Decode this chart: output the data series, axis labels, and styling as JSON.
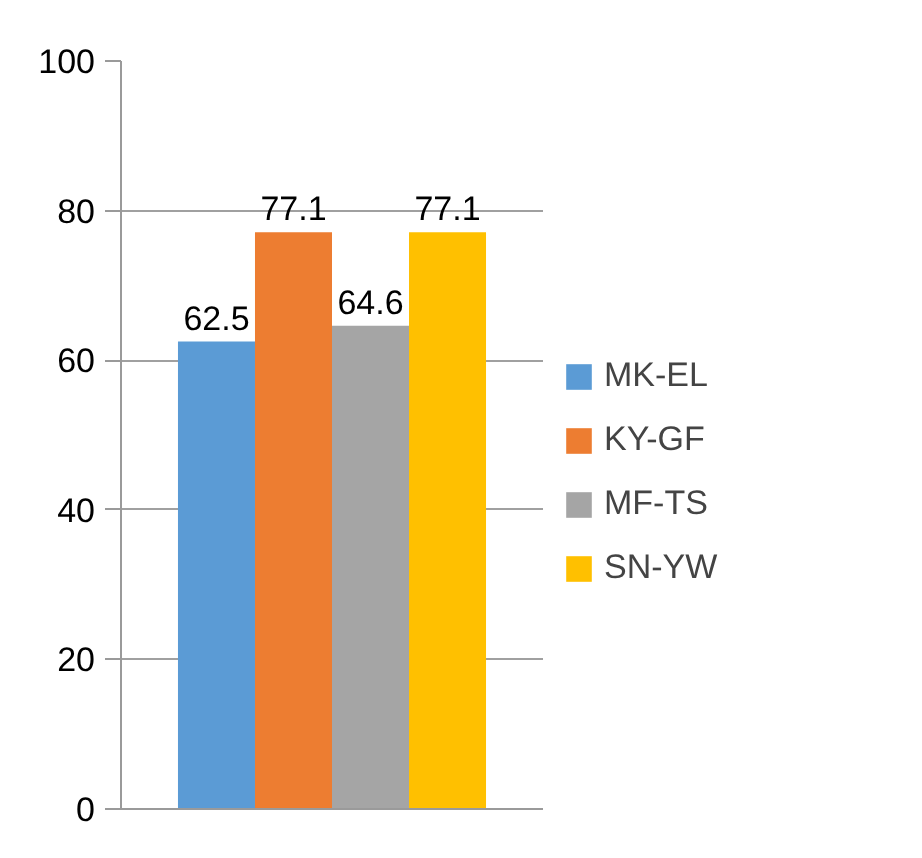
{
  "chart_data": {
    "type": "bar",
    "categories": [
      null
    ],
    "series": [
      {
        "name": "MK-EL",
        "color": "#5b9bd5",
        "values": [
          62.5
        ]
      },
      {
        "name": "KY-GF",
        "color": "#ed7d31",
        "values": [
          77.1
        ]
      },
      {
        "name": "MF-TS",
        "color": "#a5a5a5",
        "values": [
          64.6
        ]
      },
      {
        "name": "SN-YW",
        "color": "#ffc000",
        "values": [
          77.1
        ]
      }
    ],
    "ylim": [
      0,
      100
    ],
    "yticks": [
      0,
      20,
      40,
      60,
      80,
      100
    ],
    "grid": "y",
    "legend": "right",
    "data_labels": true
  }
}
